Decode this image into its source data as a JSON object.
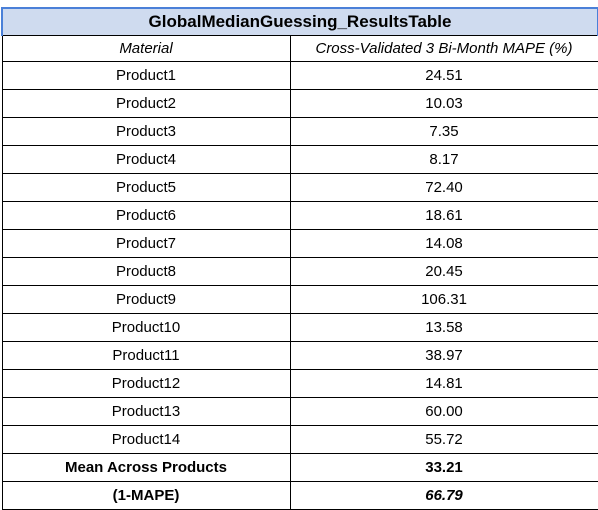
{
  "table": {
    "title": "GlobalMedianGuessing_ResultsTable",
    "headers": [
      "Material",
      "Cross-Validated 3 Bi-Month MAPE (%)"
    ],
    "rows": [
      {
        "material": "Product1",
        "mape": "24.51"
      },
      {
        "material": "Product2",
        "mape": "10.03"
      },
      {
        "material": "Product3",
        "mape": "7.35"
      },
      {
        "material": "Product4",
        "mape": "8.17"
      },
      {
        "material": "Product5",
        "mape": "72.40"
      },
      {
        "material": "Product6",
        "mape": "18.61"
      },
      {
        "material": "Product7",
        "mape": "14.08"
      },
      {
        "material": "Product8",
        "mape": "20.45"
      },
      {
        "material": "Product9",
        "mape": "106.31"
      },
      {
        "material": "Product10",
        "mape": "13.58"
      },
      {
        "material": "Product11",
        "mape": "38.97"
      },
      {
        "material": "Product12",
        "mape": "14.81"
      },
      {
        "material": "Product13",
        "mape": "60.00"
      },
      {
        "material": "Product14",
        "mape": "55.72"
      }
    ],
    "summary": {
      "mean_label": "Mean Across Products",
      "mean_value": "33.21",
      "accuracy_label": "(1-MAPE)",
      "accuracy_value": "66.79"
    }
  },
  "colors": {
    "title_fill": "#cfdbef",
    "selection_border": "#4a80d8"
  }
}
